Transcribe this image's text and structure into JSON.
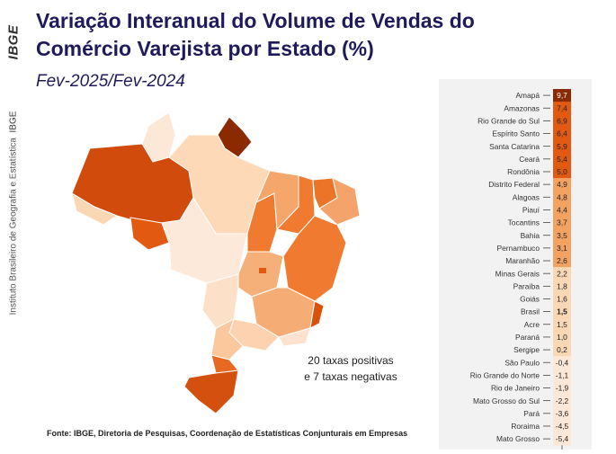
{
  "header": {
    "title": "Variação Interanual do Volume de Vendas do Comércio Varejista por Estado (%)",
    "subtitle": "Fev-2025/Fev-2024"
  },
  "sidebar": {
    "logo_text": "IBGE",
    "institution": "Instituto Brasileiro de Geografia e Estatística",
    "institution_short": "IBGE"
  },
  "map": {
    "note_line1": "20 taxas positivas",
    "note_line2": "e 7 taxas negativas"
  },
  "footer": {
    "source": "Fonte: IBGE, Diretoria de Pesquisas, Coordenação de Estatísticas Conjunturais em Empresas"
  },
  "colors": {
    "title": "#1f1a5c",
    "bar_dark": "#8b2a00",
    "bar_high": "#e25a12",
    "bar_mid": "#f3a262",
    "bar_low": "#fad7b5",
    "bar_neg": "#fde7d6",
    "panel": "#f2f2f2"
  },
  "chart_data": {
    "type": "bar",
    "orientation": "horizontal",
    "categories": [
      "Amapá",
      "Amazonas",
      "Rio Grande do Sul",
      "Espírito Santo",
      "Santa Catarina",
      "Ceará",
      "Rondônia",
      "Distrito Federal",
      "Alagoas",
      "Piauí",
      "Tocantins",
      "Bahia",
      "Pernambuco",
      "Maranhão",
      "Minas Gerais",
      "Paraíba",
      "Goiás",
      "Brasil",
      "Acre",
      "Paraná",
      "Sergipe",
      "São Paulo",
      "Rio Grande do Norte",
      "Rio de Janeiro",
      "Mato Grosso do Sul",
      "Pará",
      "Roraima",
      "Mato Grosso"
    ],
    "values": [
      9.7,
      7.4,
      6.9,
      6.4,
      5.9,
      5.4,
      5.0,
      4.9,
      4.8,
      4.4,
      3.7,
      3.5,
      3.1,
      2.6,
      2.2,
      1.8,
      1.6,
      1.5,
      1.5,
      1.0,
      0.2,
      -0.4,
      -1.1,
      -1.9,
      -2.2,
      -3.6,
      -4.5,
      -5.4
    ],
    "value_labels": [
      "9,7",
      "7,4",
      "6,9",
      "6,4",
      "5,9",
      "5,4",
      "5,0",
      "4,9",
      "4,8",
      "4,4",
      "3,7",
      "3,5",
      "3,1",
      "2,6",
      "2,2",
      "1,8",
      "1,6",
      "1,5",
      "1,5",
      "1,0",
      "0,2",
      "-0,4",
      "-1,1",
      "-1,9",
      "-2,2",
      "-3,6",
      "-4,5",
      "-5,4"
    ],
    "highlight": "Brasil",
    "xlim": [
      -6,
      10
    ]
  }
}
